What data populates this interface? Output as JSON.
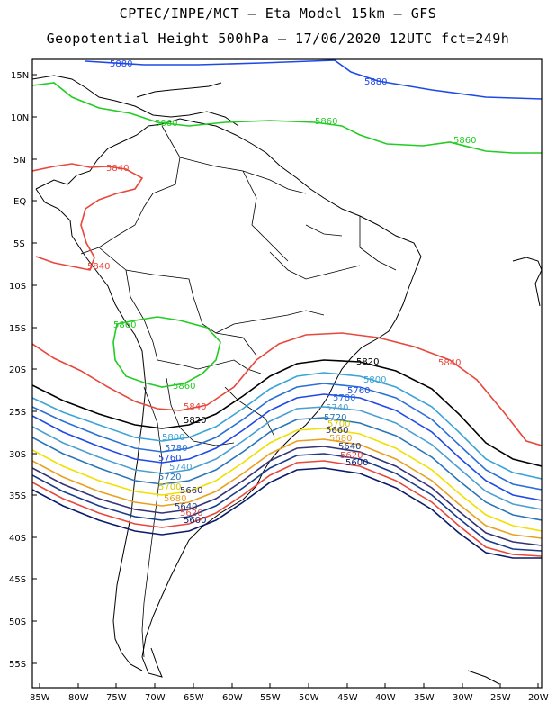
{
  "header": {
    "line1": "CPTEC/INPE/MCT –  Eta Model 15km – GFS",
    "line2": "Geopotential Height 500hPa – 17/06/2020 12UTC fct=249h"
  },
  "axes": {
    "lat_labels": [
      "15N",
      "10N",
      "5N",
      "EQ",
      "5S",
      "10S",
      "15S",
      "20S",
      "25S",
      "30S",
      "35S",
      "40S",
      "45S",
      "50S",
      "55S"
    ],
    "lon_labels": [
      "85W",
      "80W",
      "75W",
      "70W",
      "65W",
      "60W",
      "55W",
      "50W",
      "45W",
      "40W",
      "35W",
      "30W",
      "25W",
      "20W"
    ]
  },
  "contours": [
    {
      "value": "5880",
      "color": "#1f49e6"
    },
    {
      "value": "5860",
      "color": "#22cc22"
    },
    {
      "value": "5840",
      "color": "#e8473b"
    },
    {
      "value": "5820",
      "color": "#000000"
    },
    {
      "value": "5800",
      "color": "#3aa3d8"
    },
    {
      "value": "5780",
      "color": "#2a6fd6"
    },
    {
      "value": "5760",
      "color": "#1f49e6"
    },
    {
      "value": "5740",
      "color": "#4a9ed0"
    },
    {
      "value": "5720",
      "color": "#2a75b8"
    },
    {
      "value": "5700",
      "color": "#f0e000"
    },
    {
      "value": "5680",
      "color": "#e8a020"
    },
    {
      "value": "5660",
      "color": "#333377"
    },
    {
      "value": "5640",
      "color": "#1a3a8a"
    },
    {
      "value": "5620",
      "color": "#e8473b"
    },
    {
      "value": "5600",
      "color": "#0a1a6a"
    }
  ]
}
